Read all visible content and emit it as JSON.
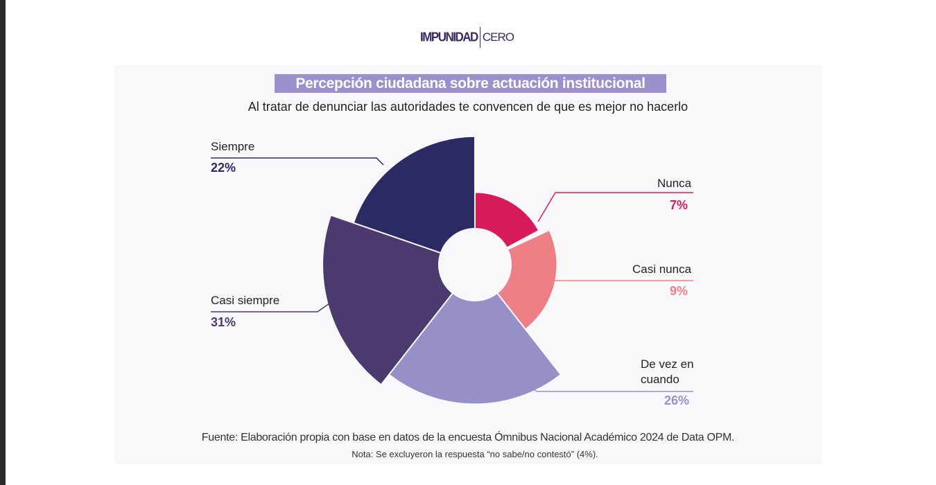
{
  "logo": {
    "part1": "IMPUNIDAD",
    "part2": "CERO"
  },
  "chart_data": {
    "type": "pie",
    "variant": "polar-area-donut",
    "title": "Percepción ciudadana sobre actuación institucional",
    "subtitle": "Al tratar de denunciar las autoridades te convencen de que es mejor no hacerlo",
    "unit": "%",
    "slices": [
      {
        "label": "Nunca",
        "value": 7,
        "value_label": "7%",
        "color": "#d81b5a"
      },
      {
        "label": "Casi nunca",
        "value": 9,
        "value_label": "9%",
        "color": "#ef7f87"
      },
      {
        "label": "De vez en cuando",
        "value": 26,
        "value_label": "26%",
        "color": "#9690c6"
      },
      {
        "label": "Casi siempre",
        "value": 31,
        "value_label": "31%",
        "color": "#4b3a6e"
      },
      {
        "label": "Siempre",
        "value": 22,
        "value_label": "22%",
        "color": "#2b2a63"
      }
    ],
    "source": "Fuente: Elaboración propia con base en datos de la encuesta Ómnibus Nacional Académico 2024 de Data OPM.",
    "note": "Nota: Se excluyeron la respuesta “no sabe/no contestó” (4%)."
  }
}
